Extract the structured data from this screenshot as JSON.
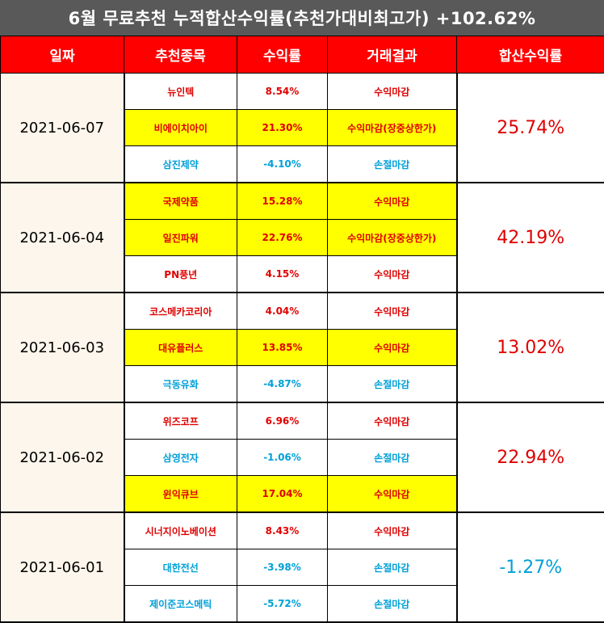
{
  "title": "6월 무료추천 누적합산수익률(추천가대비최고가) +102.62%",
  "headers": [
    "일짜",
    "추천종목",
    "수익률",
    "거래결과",
    "합산수익률"
  ],
  "groups": [
    {
      "date": "2021-06-07",
      "total": "25.74%",
      "total_color": "#e00000",
      "rows": [
        {
          "stock": "뉴인텍",
          "rate": "8.54%",
          "result": "수익마감",
          "highlight": false,
          "color": "red"
        },
        {
          "stock": "비에이치아이",
          "rate": "21.30%",
          "result": "수익마감(장중상한가)",
          "highlight": true,
          "color": "red"
        },
        {
          "stock": "삼진제약",
          "rate": "-4.10%",
          "result": "손절마감",
          "highlight": false,
          "color": "blue"
        }
      ]
    },
    {
      "date": "2021-06-04",
      "total": "42.19%",
      "total_color": "#e00000",
      "rows": [
        {
          "stock": "국제약품",
          "rate": "15.28%",
          "result": "수익마감",
          "highlight": true,
          "color": "red"
        },
        {
          "stock": "일진파워",
          "rate": "22.76%",
          "result": "수익마감(장중상한가)",
          "highlight": true,
          "color": "red"
        },
        {
          "stock": "PN풍년",
          "rate": "4.15%",
          "result": "수익마감",
          "highlight": false,
          "color": "red"
        }
      ]
    },
    {
      "date": "2021-06-03",
      "total": "13.02%",
      "total_color": "#e00000",
      "rows": [
        {
          "stock": "코스메카코리아",
          "rate": "4.04%",
          "result": "수익마감",
          "highlight": false,
          "color": "red"
        },
        {
          "stock": "대유플러스",
          "rate": "13.85%",
          "result": "수익마감",
          "highlight": true,
          "color": "red"
        },
        {
          "stock": "극동유화",
          "rate": "-4.87%",
          "result": "손절마감",
          "highlight": false,
          "color": "blue"
        }
      ]
    },
    {
      "date": "2021-06-02",
      "total": "22.94%",
      "total_color": "#e00000",
      "rows": [
        {
          "stock": "위즈코프",
          "rate": "6.96%",
          "result": "수익마감",
          "highlight": false,
          "color": "red"
        },
        {
          "stock": "삼영전자",
          "rate": "-1.06%",
          "result": "손절마감",
          "highlight": false,
          "color": "blue"
        },
        {
          "stock": "윈익큐브",
          "rate": "17.04%",
          "result": "수익마감",
          "highlight": true,
          "color": "red"
        }
      ]
    },
    {
      "date": "2021-06-01",
      "total": "-1.27%",
      "total_color": "#00a0d8",
      "rows": [
        {
          "stock": "시너지이노베이션",
          "rate": "8.43%",
          "result": "수익마감",
          "highlight": false,
          "color": "red"
        },
        {
          "stock": "대한전선",
          "rate": "-3.98%",
          "result": "손절마감",
          "highlight": false,
          "color": "blue"
        },
        {
          "stock": "제이준코스메틱",
          "rate": "-5.72%",
          "result": "손절마감",
          "highlight": false,
          "color": "blue"
        }
      ]
    }
  ]
}
